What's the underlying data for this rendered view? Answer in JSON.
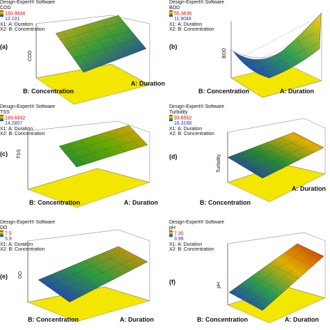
{
  "software": "Design-Expert® Software",
  "panels": [
    {
      "label": "(a)",
      "resp": "COD",
      "hi": "150.9634",
      "lo": "12.101",
      "x1": "X1: A: Duration",
      "x2": "X2: B: Concentration",
      "zlabel": "COD",
      "xaxis": "A: Duration",
      "yaxis": "B: Concentration",
      "colors": {
        "top": "#e2b000",
        "mid": "#3a9a3a",
        "low": "#1f2bd0"
      }
    },
    {
      "label": "(b)",
      "resp": "BOD",
      "hi": "55.3636",
      "lo": "11.9048",
      "x1": "X1: A: Duration",
      "x2": "X2: B: Concentration",
      "zlabel": "BOD",
      "xaxis": "A: Duration",
      "yaxis": "B: Concentration",
      "colors": {
        "top": "#ffd000",
        "mid": "#2f9d55",
        "low": "#1f2bd0"
      }
    },
    {
      "label": "(c)",
      "resp": "TSS",
      "hi": "193.6932",
      "lo": "14.2857",
      "x1": "X1: A: Duration",
      "x2": "X2: B: Concentration",
      "zlabel": "TSS",
      "xaxis": "A: Duration",
      "yaxis": "B: Concentration",
      "colors": {
        "top": "#f0a000",
        "mid": "#6aa800",
        "low": "#1a8a3a"
      }
    },
    {
      "label": "(d)",
      "resp": "Turbidity",
      "hi": "93.6552",
      "lo": "16.3168",
      "x1": "X1: A: Duration",
      "x2": "X2: B: Concentration",
      "zlabel": "Turbidity",
      "xaxis": "A: Duration",
      "yaxis": "B: Concentration",
      "colors": {
        "top": "#d03a00",
        "mid": "#2a8a30",
        "low": "#1f2bd0"
      }
    },
    {
      "label": "(e)",
      "resp": "DO",
      "hi": "7.5",
      "lo": "5.9",
      "x1": "X1: A: Duration",
      "x2": "X2: B: Concentration",
      "zlabel": "DO",
      "xaxis": "A: Duration",
      "yaxis": "B: Concentration",
      "colors": {
        "top": "#e89000",
        "mid": "#2d9a40",
        "low": "#1f2bd0"
      }
    },
    {
      "label": "(f)",
      "resp": "pH",
      "hi": "7.35",
      "lo": "3.96",
      "x1": "X1: A: Duration",
      "x2": "X2: B: Concentration",
      "zlabel": "pH",
      "xaxis": "A: Duration",
      "yaxis": "B: Concentration",
      "colors": {
        "top": "#c83000",
        "mid": "#e0b000",
        "low": "#1f2bd0"
      }
    }
  ]
}
